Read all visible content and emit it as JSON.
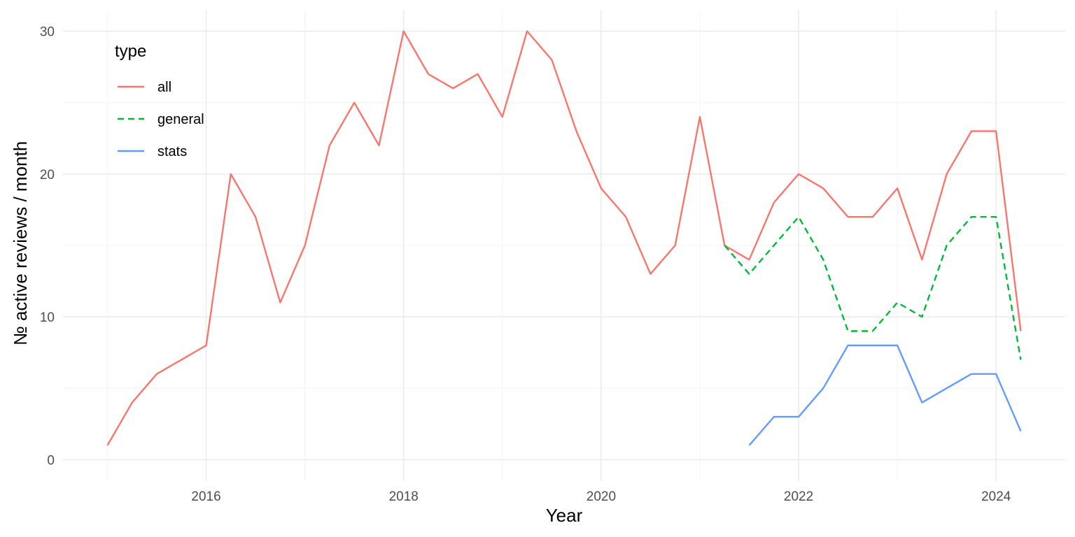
{
  "chart_data": {
    "type": "line",
    "title": "",
    "xlabel": "Year",
    "ylabel": "№ active reviews / month",
    "xlim": [
      2014.55,
      2024.7
    ],
    "ylim": [
      -1.5,
      31.5
    ],
    "x_ticks": [
      2016,
      2018,
      2020,
      2022,
      2024
    ],
    "x_tick_labels": [
      "2016",
      "2018",
      "2020",
      "2022",
      "2024"
    ],
    "y_ticks": [
      0,
      10,
      20,
      30
    ],
    "y_tick_labels": [
      "0",
      "10",
      "20",
      "30"
    ],
    "grid": true,
    "legend": {
      "title": "type",
      "position": "top-left"
    },
    "series": [
      {
        "name": "all",
        "color": "#F8766D",
        "linetype": "solid",
        "x": [
          2015.0,
          2015.25,
          2015.5,
          2015.75,
          2016.0,
          2016.25,
          2016.5,
          2016.75,
          2017.0,
          2017.25,
          2017.5,
          2017.75,
          2018.0,
          2018.25,
          2018.5,
          2018.75,
          2019.0,
          2019.25,
          2019.5,
          2019.75,
          2020.0,
          2020.25,
          2020.5,
          2020.75,
          2021.0,
          2021.25,
          2021.5,
          2021.75,
          2022.0,
          2022.25,
          2022.5,
          2022.75,
          2023.0,
          2023.25,
          2023.5,
          2023.75,
          2024.0,
          2024.25
        ],
        "values": [
          1,
          4,
          6,
          7,
          8,
          20,
          17,
          11,
          15,
          22,
          25,
          22,
          30,
          27,
          26,
          27,
          24,
          30,
          28,
          23,
          19,
          17,
          13,
          15,
          24,
          15,
          14,
          18,
          20,
          19,
          17,
          17,
          19,
          14,
          20,
          23,
          23,
          9
        ]
      },
      {
        "name": "general",
        "color": "#00BA38",
        "linetype": "dashed",
        "x": [
          2021.25,
          2021.5,
          2021.75,
          2022.0,
          2022.25,
          2022.5,
          2022.75,
          2023.0,
          2023.25,
          2023.5,
          2023.75,
          2024.0,
          2024.25
        ],
        "values": [
          15,
          13,
          15,
          17,
          14,
          9,
          9,
          11,
          10,
          15,
          17,
          17,
          7
        ]
      },
      {
        "name": "stats",
        "color": "#619CFF",
        "linetype": "solid",
        "x": [
          2021.5,
          2021.75,
          2022.0,
          2022.25,
          2022.5,
          2022.75,
          2023.0,
          2023.25,
          2023.5,
          2023.75,
          2024.0,
          2024.25
        ],
        "values": [
          1,
          3,
          3,
          5,
          8,
          8,
          8,
          4,
          5,
          6,
          6,
          2
        ]
      }
    ]
  }
}
